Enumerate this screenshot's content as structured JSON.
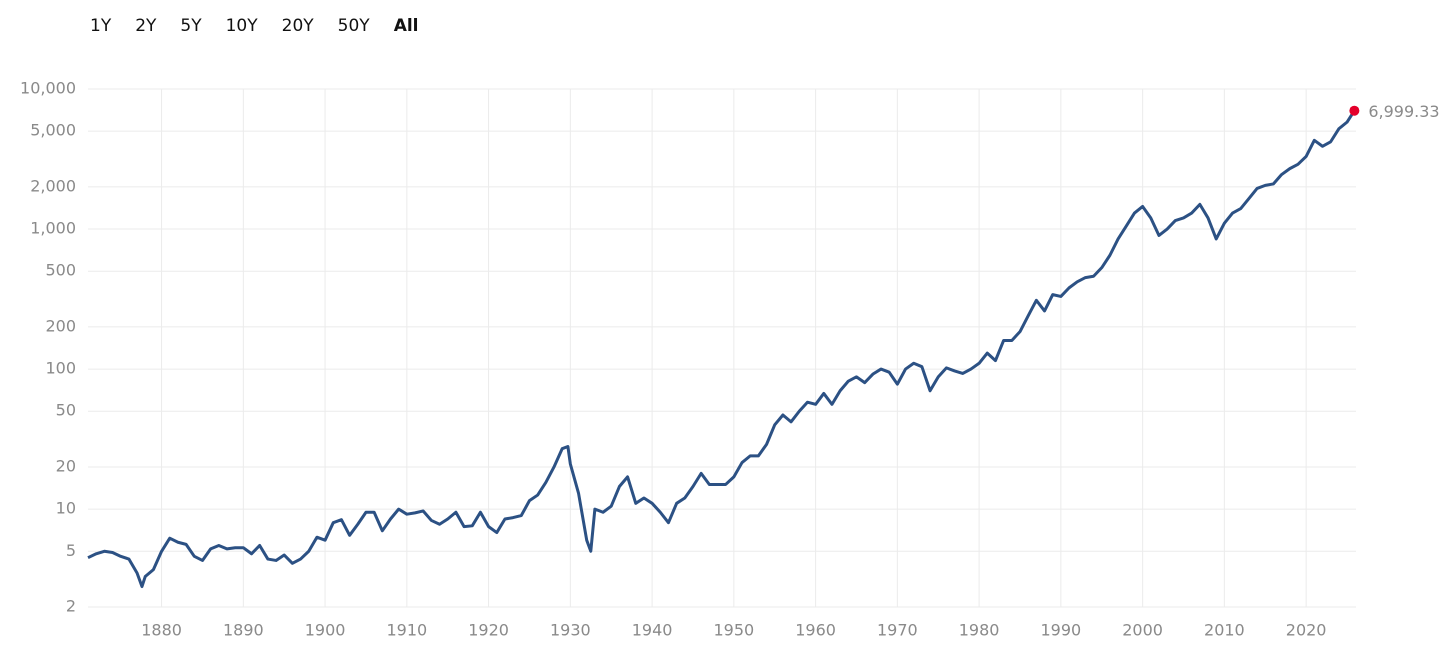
{
  "range_buttons": [
    {
      "label": "1Y",
      "active": false
    },
    {
      "label": "2Y",
      "active": false
    },
    {
      "label": "5Y",
      "active": false
    },
    {
      "label": "10Y",
      "active": false
    },
    {
      "label": "20Y",
      "active": false
    },
    {
      "label": "50Y",
      "active": false
    },
    {
      "label": "All",
      "active": true
    }
  ],
  "chart_data": {
    "type": "line",
    "log_y": true,
    "grid": true,
    "xlim": [
      1871,
      2026.1
    ],
    "ylim": [
      2,
      10000
    ],
    "xticks": [
      1880,
      1890,
      1900,
      1910,
      1920,
      1930,
      1940,
      1950,
      1960,
      1970,
      1980,
      1990,
      2000,
      2010,
      2020
    ],
    "yticks": [
      2,
      5,
      10,
      20,
      50,
      100,
      200,
      500,
      {
        "value": 1000,
        "label": "1,000"
      },
      {
        "value": 2000,
        "label": "2,000"
      },
      {
        "value": 5000,
        "label": "5,000"
      },
      {
        "value": 10000,
        "label": "10,000"
      }
    ],
    "x": [
      1871,
      1872,
      1873,
      1874,
      1875,
      1876,
      1877,
      1877.6,
      1878,
      1879,
      1880,
      1881,
      1882,
      1883,
      1884,
      1885,
      1886,
      1887,
      1888,
      1889,
      1890,
      1891,
      1892,
      1893,
      1894,
      1895,
      1896,
      1897,
      1898,
      1899,
      1900,
      1901,
      1902,
      1903,
      1904,
      1905,
      1906,
      1907,
      1908,
      1909,
      1910,
      1911,
      1912,
      1913,
      1914,
      1915,
      1916,
      1917,
      1918,
      1919,
      1920,
      1921,
      1922,
      1923,
      1924,
      1925,
      1926,
      1927,
      1928,
      1929,
      1929.7,
      1930,
      1931,
      1932,
      1932.5,
      1933,
      1934,
      1935,
      1936,
      1937,
      1938,
      1939,
      1940,
      1941,
      1942,
      1943,
      1944,
      1945,
      1946,
      1947,
      1948,
      1949,
      1950,
      1951,
      1952,
      1953,
      1954,
      1955,
      1956,
      1957,
      1958,
      1959,
      1960,
      1961,
      1962,
      1963,
      1964,
      1965,
      1966,
      1967,
      1968,
      1969,
      1970,
      1971,
      1972,
      1973,
      1974,
      1975,
      1976,
      1977,
      1978,
      1979,
      1980,
      1981,
      1982,
      1983,
      1984,
      1985,
      1986,
      1987,
      1988,
      1989,
      1990,
      1991,
      1992,
      1993,
      1994,
      1995,
      1996,
      1997,
      1998,
      1999,
      2000,
      2001,
      2002,
      2003,
      2004,
      2005,
      2006,
      2007,
      2008,
      2009,
      2010,
      2011,
      2012,
      2013,
      2014,
      2015,
      2016,
      2017,
      2018,
      2019,
      2020,
      2021,
      2022,
      2023,
      2024,
      2025,
      2025.9
    ],
    "series": [
      {
        "color": "#2c5184",
        "marker_color": "#e4002b",
        "values": [
          4.5,
          4.8,
          5.0,
          4.9,
          4.6,
          4.4,
          3.5,
          2.8,
          3.3,
          3.7,
          5.0,
          6.2,
          5.8,
          5.6,
          4.6,
          4.3,
          5.2,
          5.5,
          5.2,
          5.3,
          5.3,
          4.8,
          5.5,
          4.4,
          4.3,
          4.7,
          4.1,
          4.4,
          5.0,
          6.3,
          6.0,
          8.0,
          8.4,
          6.5,
          7.8,
          9.5,
          9.5,
          7.0,
          8.5,
          10.0,
          9.2,
          9.4,
          9.7,
          8.3,
          7.8,
          8.5,
          9.5,
          7.5,
          7.6,
          9.5,
          7.5,
          6.8,
          8.5,
          8.7,
          9.0,
          11.5,
          12.6,
          15.5,
          20,
          27,
          28,
          21,
          13,
          6,
          5,
          10,
          9.5,
          10.5,
          14.5,
          17,
          11,
          12,
          11,
          9.5,
          8,
          11,
          12,
          14.5,
          18,
          15,
          15,
          15,
          17,
          21.5,
          24,
          24,
          29,
          40,
          47,
          42,
          50,
          58,
          56,
          67,
          56,
          70,
          82,
          88,
          80,
          92,
          100,
          95,
          78,
          100,
          110,
          104,
          70,
          88,
          102,
          97,
          93,
          100,
          110,
          130,
          115,
          160,
          160,
          185,
          240,
          310,
          260,
          340,
          330,
          380,
          420,
          450,
          460,
          530,
          650,
          850,
          1050,
          1300,
          1450,
          1200,
          900,
          1000,
          1150,
          1200,
          1300,
          1500,
          1200,
          850,
          1100,
          1300,
          1400,
          1650,
          1950,
          2050,
          2100,
          2450,
          2700,
          2900,
          3300,
          4300,
          3900,
          4200,
          5200,
          5800,
          6999.33
        ],
        "value_labels": [
          null,
          null,
          null,
          null,
          null,
          null,
          null,
          null,
          null,
          null,
          null,
          null,
          null,
          null,
          null,
          null,
          null,
          null,
          null,
          null,
          null,
          null,
          null,
          null,
          null,
          null,
          null,
          null,
          null,
          null,
          null,
          null,
          null,
          null,
          null,
          null,
          null,
          null,
          null,
          null,
          null,
          null,
          null,
          null,
          null,
          null,
          null,
          null,
          null,
          null,
          null,
          null,
          null,
          null,
          null,
          null,
          null,
          null,
          null,
          null,
          null,
          null,
          null,
          null,
          null,
          null,
          null,
          null,
          null,
          null,
          null,
          null,
          null,
          null,
          null,
          null,
          null,
          null,
          null,
          null,
          null,
          null,
          null,
          null,
          null,
          null,
          null,
          null,
          null,
          null,
          null,
          null,
          null,
          null,
          null,
          null,
          null,
          null,
          null,
          null,
          null,
          null,
          null,
          null,
          null,
          null,
          null,
          null,
          null,
          null,
          null,
          null,
          null,
          null,
          null,
          null,
          null,
          null,
          null,
          null,
          null,
          null,
          null,
          null,
          null,
          null,
          null,
          null,
          null,
          null,
          null,
          null,
          null,
          null,
          null,
          null,
          null,
          null,
          null,
          null,
          null,
          null,
          null,
          null,
          null,
          null,
          null,
          null,
          null,
          null,
          null,
          null,
          null,
          null,
          null,
          null,
          null,
          null,
          "6,999.33"
        ]
      }
    ]
  }
}
